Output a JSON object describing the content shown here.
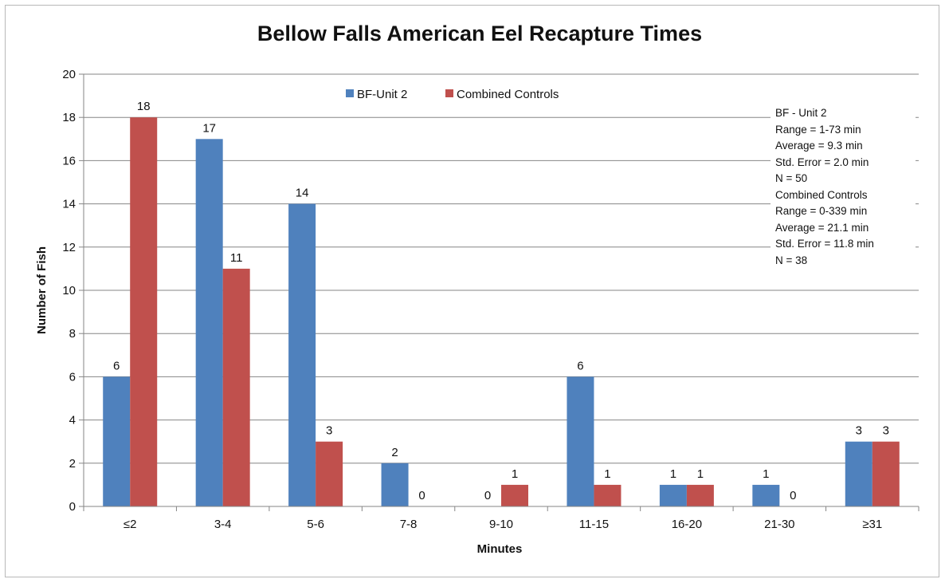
{
  "chart_data": {
    "type": "bar",
    "title": "Bellow Falls American Eel Recapture Times",
    "xlabel": "Minutes",
    "ylabel": "Number of Fish",
    "categories": [
      "≤2",
      "3-4",
      "5-6",
      "7-8",
      "9-10",
      "11-15",
      "16-20",
      "21-30",
      "≥31"
    ],
    "series": [
      {
        "name": "BF-Unit 2",
        "color": "#4f81bd",
        "values": [
          6,
          17,
          14,
          2,
          0,
          6,
          1,
          1,
          3
        ]
      },
      {
        "name": "Combined Controls",
        "color": "#c0504d",
        "values": [
          18,
          11,
          3,
          0,
          1,
          1,
          1,
          0,
          3
        ]
      }
    ],
    "ylim": [
      0,
      20
    ],
    "yticks": [
      0,
      2,
      4,
      6,
      8,
      10,
      12,
      14,
      16,
      18,
      20
    ],
    "grid": true,
    "legend_position": "top",
    "data_labels": true,
    "annotation_lines": [
      "BF - Unit 2",
      "Range = 1-73 min",
      "Average = 9.3 min",
      "Std. Error = 2.0 min",
      "N = 50",
      "Combined Controls",
      "Range = 0-339 min",
      "Average = 21.1 min",
      "Std. Error = 11.8 min",
      "N = 38"
    ]
  }
}
